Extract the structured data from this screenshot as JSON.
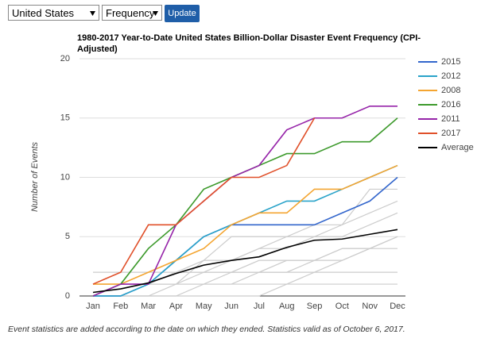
{
  "controls": {
    "region": "United States",
    "metric": "Frequency",
    "button": "Update"
  },
  "chart_data": {
    "type": "line",
    "title": "1980-2017 Year-to-Date United States Billion-Dollar Disaster Event Frequency (CPI-Adjusted)",
    "y_label": "Number of Events",
    "categories": [
      "Jan",
      "Feb",
      "Mar",
      "Apr",
      "May",
      "Jun",
      "Jul",
      "Aug",
      "Sep",
      "Oct",
      "Nov",
      "Dec"
    ],
    "ylim": [
      0,
      20
    ],
    "yticks": [
      0,
      5,
      10,
      15,
      20
    ],
    "grid": true,
    "legend": "right",
    "series": [
      {
        "color": "#cccccc",
        "values": [
          0,
          0,
          0,
          0,
          1,
          1,
          2,
          2,
          3,
          3,
          4,
          5
        ]
      },
      {
        "color": "#cccccc",
        "values": [
          0,
          1,
          1,
          1,
          1,
          2,
          2,
          3,
          3,
          4,
          4,
          5
        ]
      },
      {
        "color": "#cccccc",
        "values": [
          1,
          1,
          1,
          2,
          2,
          2,
          3,
          3,
          3,
          4,
          4,
          4
        ]
      },
      {
        "color": "#cccccc",
        "values": [
          0,
          0,
          1,
          1,
          2,
          3,
          4,
          4,
          5,
          5,
          6,
          7
        ]
      },
      {
        "color": "#cccccc",
        "values": [
          0,
          0,
          0,
          1,
          1,
          1,
          1,
          1,
          1,
          1,
          1,
          1
        ]
      },
      {
        "color": "#cccccc",
        "values": [
          2,
          2,
          2,
          2,
          2,
          2,
          2,
          2,
          2,
          2,
          2,
          2
        ]
      },
      {
        "color": "#cccccc",
        "values": [
          0,
          1,
          1,
          2,
          3,
          5,
          5,
          5,
          6,
          6,
          7,
          8
        ]
      },
      {
        "color": "#cccccc",
        "values": [
          0,
          0,
          0,
          0,
          0,
          0,
          0,
          1,
          2,
          3,
          4,
          5
        ]
      },
      {
        "color": "#cccccc",
        "values": [
          0,
          1,
          1,
          1,
          3,
          3,
          4,
          5,
          5,
          6,
          9,
          9
        ]
      },
      {
        "name": "2015",
        "color": "#3366cc",
        "values": [
          0,
          0,
          1,
          3,
          5,
          6,
          6,
          6,
          6,
          7,
          8,
          10
        ]
      },
      {
        "name": "2012",
        "color": "#2aa3c9",
        "values": [
          0,
          0,
          1,
          3,
          5,
          6,
          7,
          8,
          8,
          9,
          10,
          11
        ]
      },
      {
        "name": "2008",
        "color": "#f4a531",
        "values": [
          1,
          1,
          2,
          3,
          4,
          6,
          7,
          7,
          9,
          9,
          10,
          11
        ]
      },
      {
        "name": "2016",
        "color": "#3d9a2c",
        "values": [
          0,
          1,
          4,
          6,
          9,
          10,
          11,
          12,
          12,
          13,
          13,
          15
        ]
      },
      {
        "name": "2011",
        "color": "#9624a9",
        "values": [
          0,
          1,
          1,
          6,
          8,
          10,
          11,
          14,
          15,
          15,
          16,
          16
        ]
      },
      {
        "name": "2017",
        "color": "#e0502a",
        "values": [
          1,
          2,
          6,
          6,
          8,
          10,
          10,
          11,
          15,
          null,
          null,
          null
        ]
      },
      {
        "name": "Average",
        "color": "#000000",
        "values": [
          0.3,
          0.6,
          1.1,
          1.9,
          2.6,
          3.0,
          3.3,
          4.1,
          4.7,
          4.8,
          5.2,
          5.6
        ]
      }
    ]
  },
  "footnote": "Event statistics are added according to the date on which they ended. Statistics valid as of October 6, 2017."
}
